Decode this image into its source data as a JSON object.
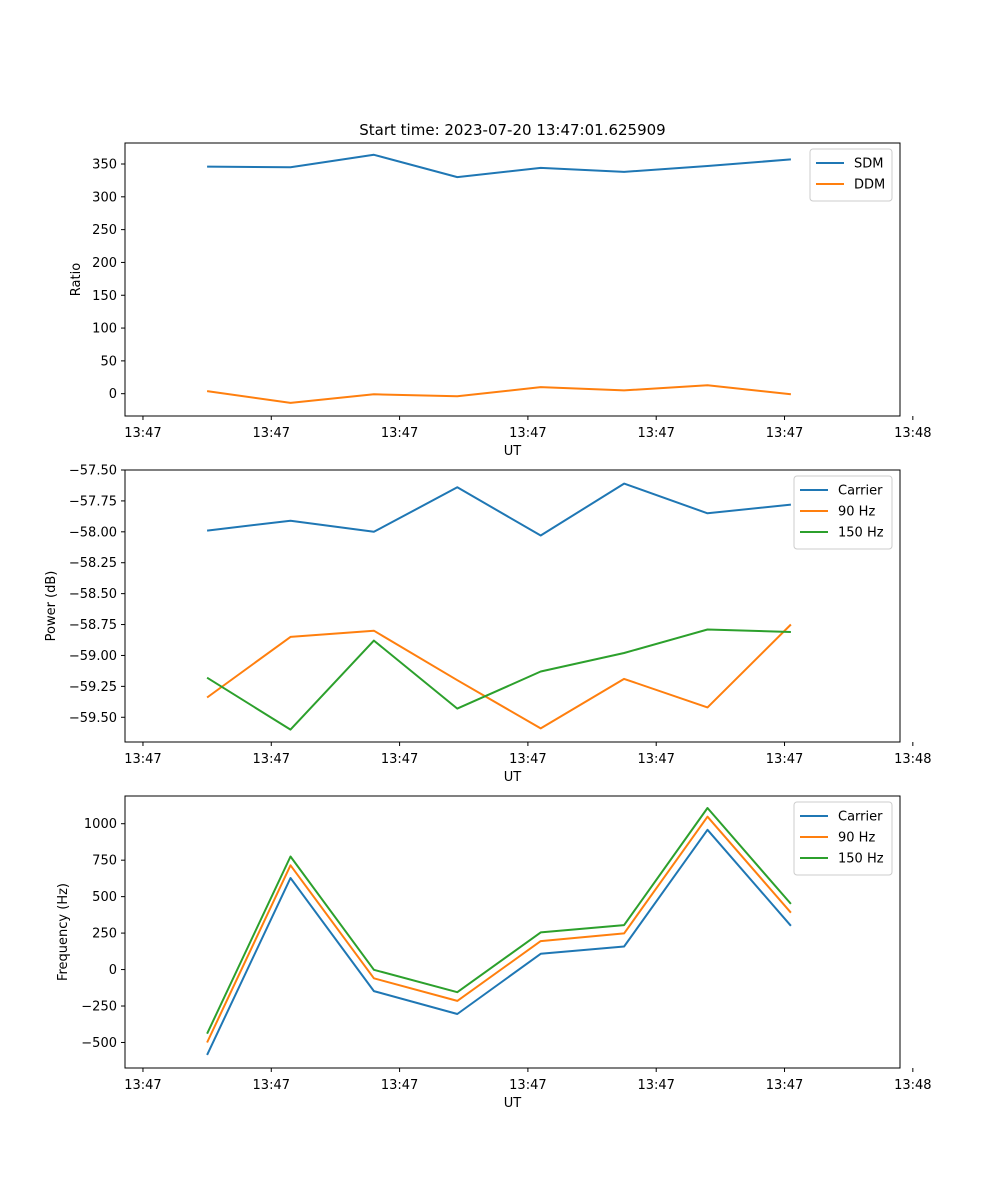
{
  "chart_data": [
    {
      "type": "line",
      "title": "Start time: 2023-07-20 13:47:01.625909",
      "xlabel": "UT",
      "ylabel": "Ratio",
      "x": [
        0.5,
        1.15,
        1.8,
        2.45,
        3.1,
        3.75,
        4.4,
        5.05
      ],
      "x_ticks": [
        0,
        1,
        2,
        3,
        4,
        5,
        6
      ],
      "x_tick_labels": [
        "13:47",
        "13:47",
        "13:47",
        "13:47",
        "13:47",
        "13:47",
        "13:48"
      ],
      "xlim": [
        -0.14,
        5.9
      ],
      "ylim": [
        -34,
        382
      ],
      "y_ticks": [
        0,
        50,
        100,
        150,
        200,
        250,
        300,
        350
      ],
      "y_tick_labels": [
        "0",
        "50",
        "100",
        "150",
        "200",
        "250",
        "300",
        "350"
      ],
      "legend_position": "top-right",
      "series": [
        {
          "name": "SDM",
          "color": "#1f77b4",
          "values": [
            346,
            345,
            364,
            330,
            344,
            338,
            347,
            357
          ]
        },
        {
          "name": "DDM",
          "color": "#ff7f0e",
          "values": [
            4,
            -14,
            -1,
            -4,
            10,
            5,
            13,
            -1
          ]
        }
      ]
    },
    {
      "type": "line",
      "title": "",
      "xlabel": "UT",
      "ylabel": "Power (dB)",
      "x": [
        0.5,
        1.15,
        1.8,
        2.45,
        3.1,
        3.75,
        4.4,
        5.05
      ],
      "x_ticks": [
        0,
        1,
        2,
        3,
        4,
        5,
        6
      ],
      "x_tick_labels": [
        "13:47",
        "13:47",
        "13:47",
        "13:47",
        "13:47",
        "13:47",
        "13:48"
      ],
      "xlim": [
        -0.14,
        5.9
      ],
      "ylim": [
        -59.7,
        -57.5
      ],
      "y_ticks": [
        -57.5,
        -57.75,
        -58.0,
        -58.25,
        -58.5,
        -58.75,
        -59.0,
        -59.25,
        -59.5
      ],
      "y_tick_labels": [
        "−57.50",
        "−57.75",
        "−58.00",
        "−58.25",
        "−58.50",
        "−58.75",
        "−59.00",
        "−59.25",
        "−59.50"
      ],
      "legend_position": "top-right",
      "series": [
        {
          "name": "Carrier",
          "color": "#1f77b4",
          "values": [
            -57.99,
            -57.91,
            -58.0,
            -57.64,
            -58.03,
            -57.61,
            -57.85,
            -57.78
          ]
        },
        {
          "name": "90 Hz",
          "color": "#ff7f0e",
          "values": [
            -59.34,
            -58.85,
            -58.8,
            -59.2,
            -59.59,
            -59.19,
            -59.42,
            -58.75
          ]
        },
        {
          "name": "150 Hz",
          "color": "#2ca02c",
          "values": [
            -59.18,
            -59.6,
            -58.88,
            -59.43,
            -59.13,
            -58.98,
            -58.79,
            -58.81
          ]
        }
      ]
    },
    {
      "type": "line",
      "title": "",
      "xlabel": "UT",
      "ylabel": "Frequency (Hz)",
      "x": [
        0.5,
        1.15,
        1.8,
        2.45,
        3.1,
        3.75,
        4.4,
        5.05
      ],
      "x_ticks": [
        0,
        1,
        2,
        3,
        4,
        5,
        6
      ],
      "x_tick_labels": [
        "13:47",
        "13:47",
        "13:47",
        "13:47",
        "13:47",
        "13:47",
        "13:48"
      ],
      "xlim": [
        -0.14,
        5.9
      ],
      "ylim": [
        -675,
        1190
      ],
      "y_ticks": [
        -500,
        -250,
        0,
        250,
        500,
        750,
        1000
      ],
      "y_tick_labels": [
        "−500",
        "−250",
        "0",
        "250",
        "500",
        "750",
        "1000"
      ],
      "legend_position": "top-right",
      "series": [
        {
          "name": "Carrier",
          "color": "#1f77b4",
          "values": [
            -585,
            628,
            -148,
            -305,
            108,
            158,
            958,
            300
          ]
        },
        {
          "name": "90 Hz",
          "color": "#ff7f0e",
          "values": [
            -500,
            715,
            -60,
            -215,
            195,
            248,
            1048,
            390
          ]
        },
        {
          "name": "150 Hz",
          "color": "#2ca02c",
          "values": [
            -440,
            775,
            -2,
            -155,
            255,
            305,
            1108,
            450
          ]
        }
      ]
    }
  ]
}
